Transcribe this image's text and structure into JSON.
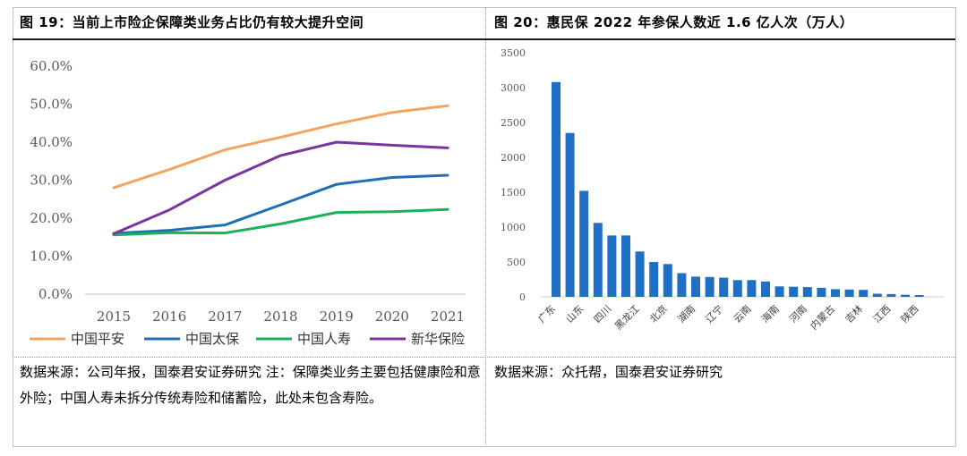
{
  "titles": {
    "left": "图 19：当前上市险企保障类业务占比仍有较大提升空间",
    "right": "图 20：惠民保 2022 年参保人数近 1.6 亿人次（万人）"
  },
  "sources": {
    "left": "数据来源：公司年报，国泰君安证券研究 注：保障类业务主要包括健康险和意外险；中国人寿未拆分传统寿险和储蓄险，此处未包含寿险。",
    "right": "数据来源：众托帮，国泰君安证券研究"
  },
  "chart_data": [
    {
      "type": "line",
      "title": "",
      "x": [
        "2015",
        "2016",
        "2017",
        "2018",
        "2019",
        "2020",
        "2021"
      ],
      "y_ticks": [
        "0.0%",
        "10.0%",
        "20.0%",
        "30.0%",
        "40.0%",
        "50.0%",
        "60.0%"
      ],
      "ylim": [
        0,
        60
      ],
      "grid": false,
      "legend": "bottom",
      "series": [
        {
          "name": "中国平安",
          "color": "#f4a460",
          "values": [
            28.0,
            32.8,
            38.0,
            41.3,
            44.8,
            47.8,
            49.6
          ]
        },
        {
          "name": "中国太保",
          "color": "#1f6fb5",
          "values": [
            16.0,
            16.8,
            18.2,
            23.5,
            28.9,
            30.7,
            31.3
          ]
        },
        {
          "name": "中国人寿",
          "color": "#1fb05a",
          "values": [
            15.6,
            16.2,
            16.1,
            18.5,
            21.5,
            21.7,
            22.3
          ]
        },
        {
          "name": "新华保险",
          "color": "#7a35a0",
          "values": [
            15.9,
            22.2,
            30.0,
            36.5,
            40.0,
            39.2,
            38.5
          ]
        }
      ]
    },
    {
      "type": "bar",
      "title": "",
      "categories": [
        "广东",
        "",
        "山东",
        "",
        "四川",
        "",
        "黑龙江",
        "",
        "北京",
        "",
        "湖南",
        "",
        "辽宁",
        "",
        "云南",
        "",
        "海南",
        "",
        "河南",
        "",
        "内蒙古",
        "",
        "吉林",
        "",
        "江西",
        "",
        "陕西"
      ],
      "values": [
        3080,
        2350,
        1520,
        1060,
        880,
        880,
        650,
        500,
        470,
        340,
        290,
        285,
        275,
        240,
        240,
        220,
        150,
        145,
        140,
        130,
        110,
        105,
        100,
        45,
        40,
        30,
        25
      ],
      "y_ticks": [
        "0",
        "500",
        "1000",
        "1500",
        "2000",
        "2500",
        "3000",
        "3500"
      ],
      "ylim": [
        0,
        3500
      ],
      "color": "#1f6fc5",
      "grid": false
    }
  ]
}
